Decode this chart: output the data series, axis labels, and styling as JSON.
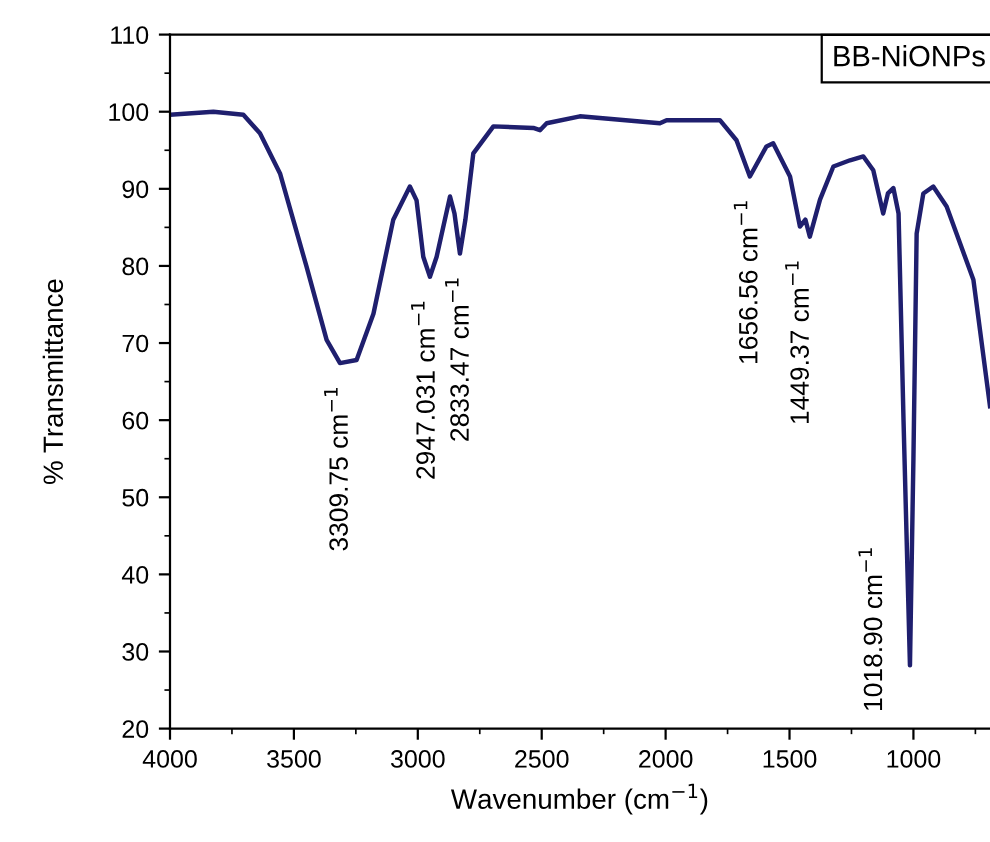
{
  "chart_data": {
    "type": "line",
    "xlabel": "Wavenumber (cm$^{−1}$)",
    "ylabel": "% Transmittance",
    "xlim": [
      4000,
      691
    ],
    "ylim": [
      20,
      110
    ],
    "xticks": [
      4000,
      3500,
      3000,
      2500,
      2000,
      1500,
      1000
    ],
    "yticks": [
      20,
      30,
      40,
      50,
      60,
      70,
      80,
      90,
      100,
      110
    ],
    "grid": false,
    "legend": false,
    "marker": "none",
    "line_style": "solid",
    "series": [
      {
        "color": "#1f1f6e",
        "x": [
          4000,
          3825,
          3704,
          3637,
          3556,
          3449,
          3368,
          3314,
          3247,
          3179,
          3099,
          3032,
          3005,
          2978,
          2951,
          2924,
          2870,
          2852,
          2830,
          2808,
          2776,
          2695,
          2534,
          2507,
          2480,
          2346,
          2023,
          1996,
          1781,
          1714,
          1660,
          1593,
          1566,
          1498,
          1458,
          1436,
          1418,
          1377,
          1323,
          1256,
          1202,
          1162,
          1122,
          1103,
          1081,
          1060,
          1040,
          1014,
          1000,
          987,
          960,
          920,
          866,
          758,
          691
        ],
        "values": [
          99.6,
          100.0,
          99.6,
          97.2,
          92,
          79.9,
          70.4,
          67.4,
          67.8,
          73.8,
          86,
          90.3,
          88.5,
          81.2,
          78.6,
          81.2,
          89,
          86.8,
          81.6,
          86,
          94.6,
          98.1,
          97.9,
          97.6,
          98.5,
          99.4,
          98.5,
          98.9,
          98.9,
          96.3,
          91.6,
          95.5,
          95.9,
          91.6,
          85.1,
          86,
          83.8,
          88.6,
          92.9,
          93.7,
          94.2,
          92.4,
          86.8,
          89.4,
          90.1,
          86.8,
          60,
          28.2,
          55,
          84.2,
          89.4,
          90.3,
          87.7,
          78.2,
          61.8
        ]
      }
    ],
    "annotations": [
      {
        "text": "3309.75 cm$^{−1}$",
        "x": 3309.75,
        "y": 67.4
      },
      {
        "text": "2947.031 cm$^{−1}$",
        "x": 2947.031,
        "y": 78.6
      },
      {
        "text": "2833.47 cm$^{−1}$",
        "x": 2833.47,
        "y": 81.6
      },
      {
        "text": "1656.56 cm$^{−1}$",
        "x": 1656.56,
        "y": 91.6
      },
      {
        "text": "1449.37 cm$^{−1}$",
        "x": 1449.37,
        "y": 83.8
      },
      {
        "text": "1018.90 cm$^{−1}$",
        "x": 1018.9,
        "y": 28.2
      },
      "BB-NiONPs"
    ]
  }
}
